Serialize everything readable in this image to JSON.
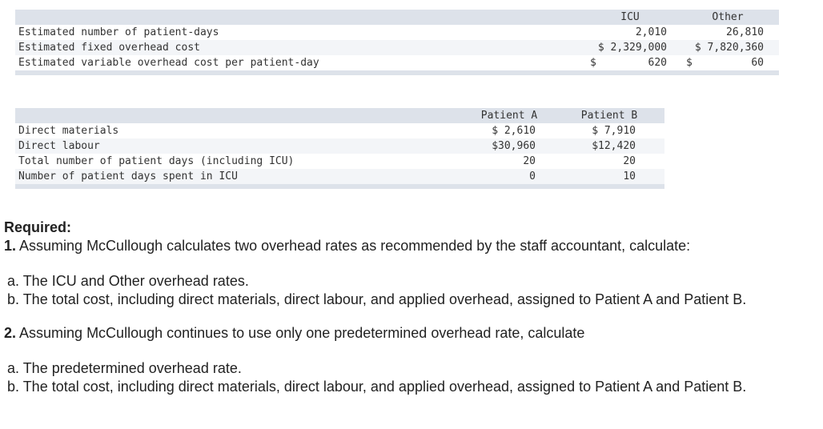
{
  "table1": {
    "headers": [
      "ICU",
      "Other"
    ],
    "rows": [
      {
        "label": "Estimated number of patient-days",
        "icu": "2,010",
        "other": "26,810",
        "icu_dollar": "",
        "other_dollar": ""
      },
      {
        "label": "Estimated fixed overhead cost",
        "icu": "$ 2,329,000",
        "other": "$ 7,820,360",
        "icu_dollar": "",
        "other_dollar": ""
      },
      {
        "label": "Estimated variable overhead cost per patient-day",
        "icu": "620",
        "other": "60",
        "icu_dollar": "$",
        "other_dollar": "$"
      }
    ]
  },
  "table2": {
    "headers": [
      "Patient A",
      "Patient B"
    ],
    "rows": [
      {
        "label": "Direct materials",
        "a": "$ 2,610",
        "b": "$ 7,910"
      },
      {
        "label": "Direct labour",
        "a": "$30,960",
        "b": "$12,420"
      },
      {
        "label": "Total number of patient days (including ICU)",
        "a": "20",
        "b": "20"
      },
      {
        "label": "Number of patient days spent in ICU",
        "a": "0",
        "b": "10"
      }
    ]
  },
  "required": {
    "title": "Required:",
    "q1_num": "1.",
    "q1_text": "Assuming McCullough calculates two overhead rates as recommended by the staff accountant, calculate:",
    "q1a": "a. The ICU and Other overhead rates.",
    "q1b": "b. The total cost, including direct materials, direct labour, and applied overhead, assigned to Patient A and Patient B.",
    "q2_num": "2.",
    "q2_text": "Assuming McCullough continues to use only one predetermined overhead rate, calculate",
    "q2a": "a. The predetermined overhead rate.",
    "q2b": "b. The total cost, including direct materials, direct labour, and applied overhead, assigned to Patient A and Patient B."
  }
}
